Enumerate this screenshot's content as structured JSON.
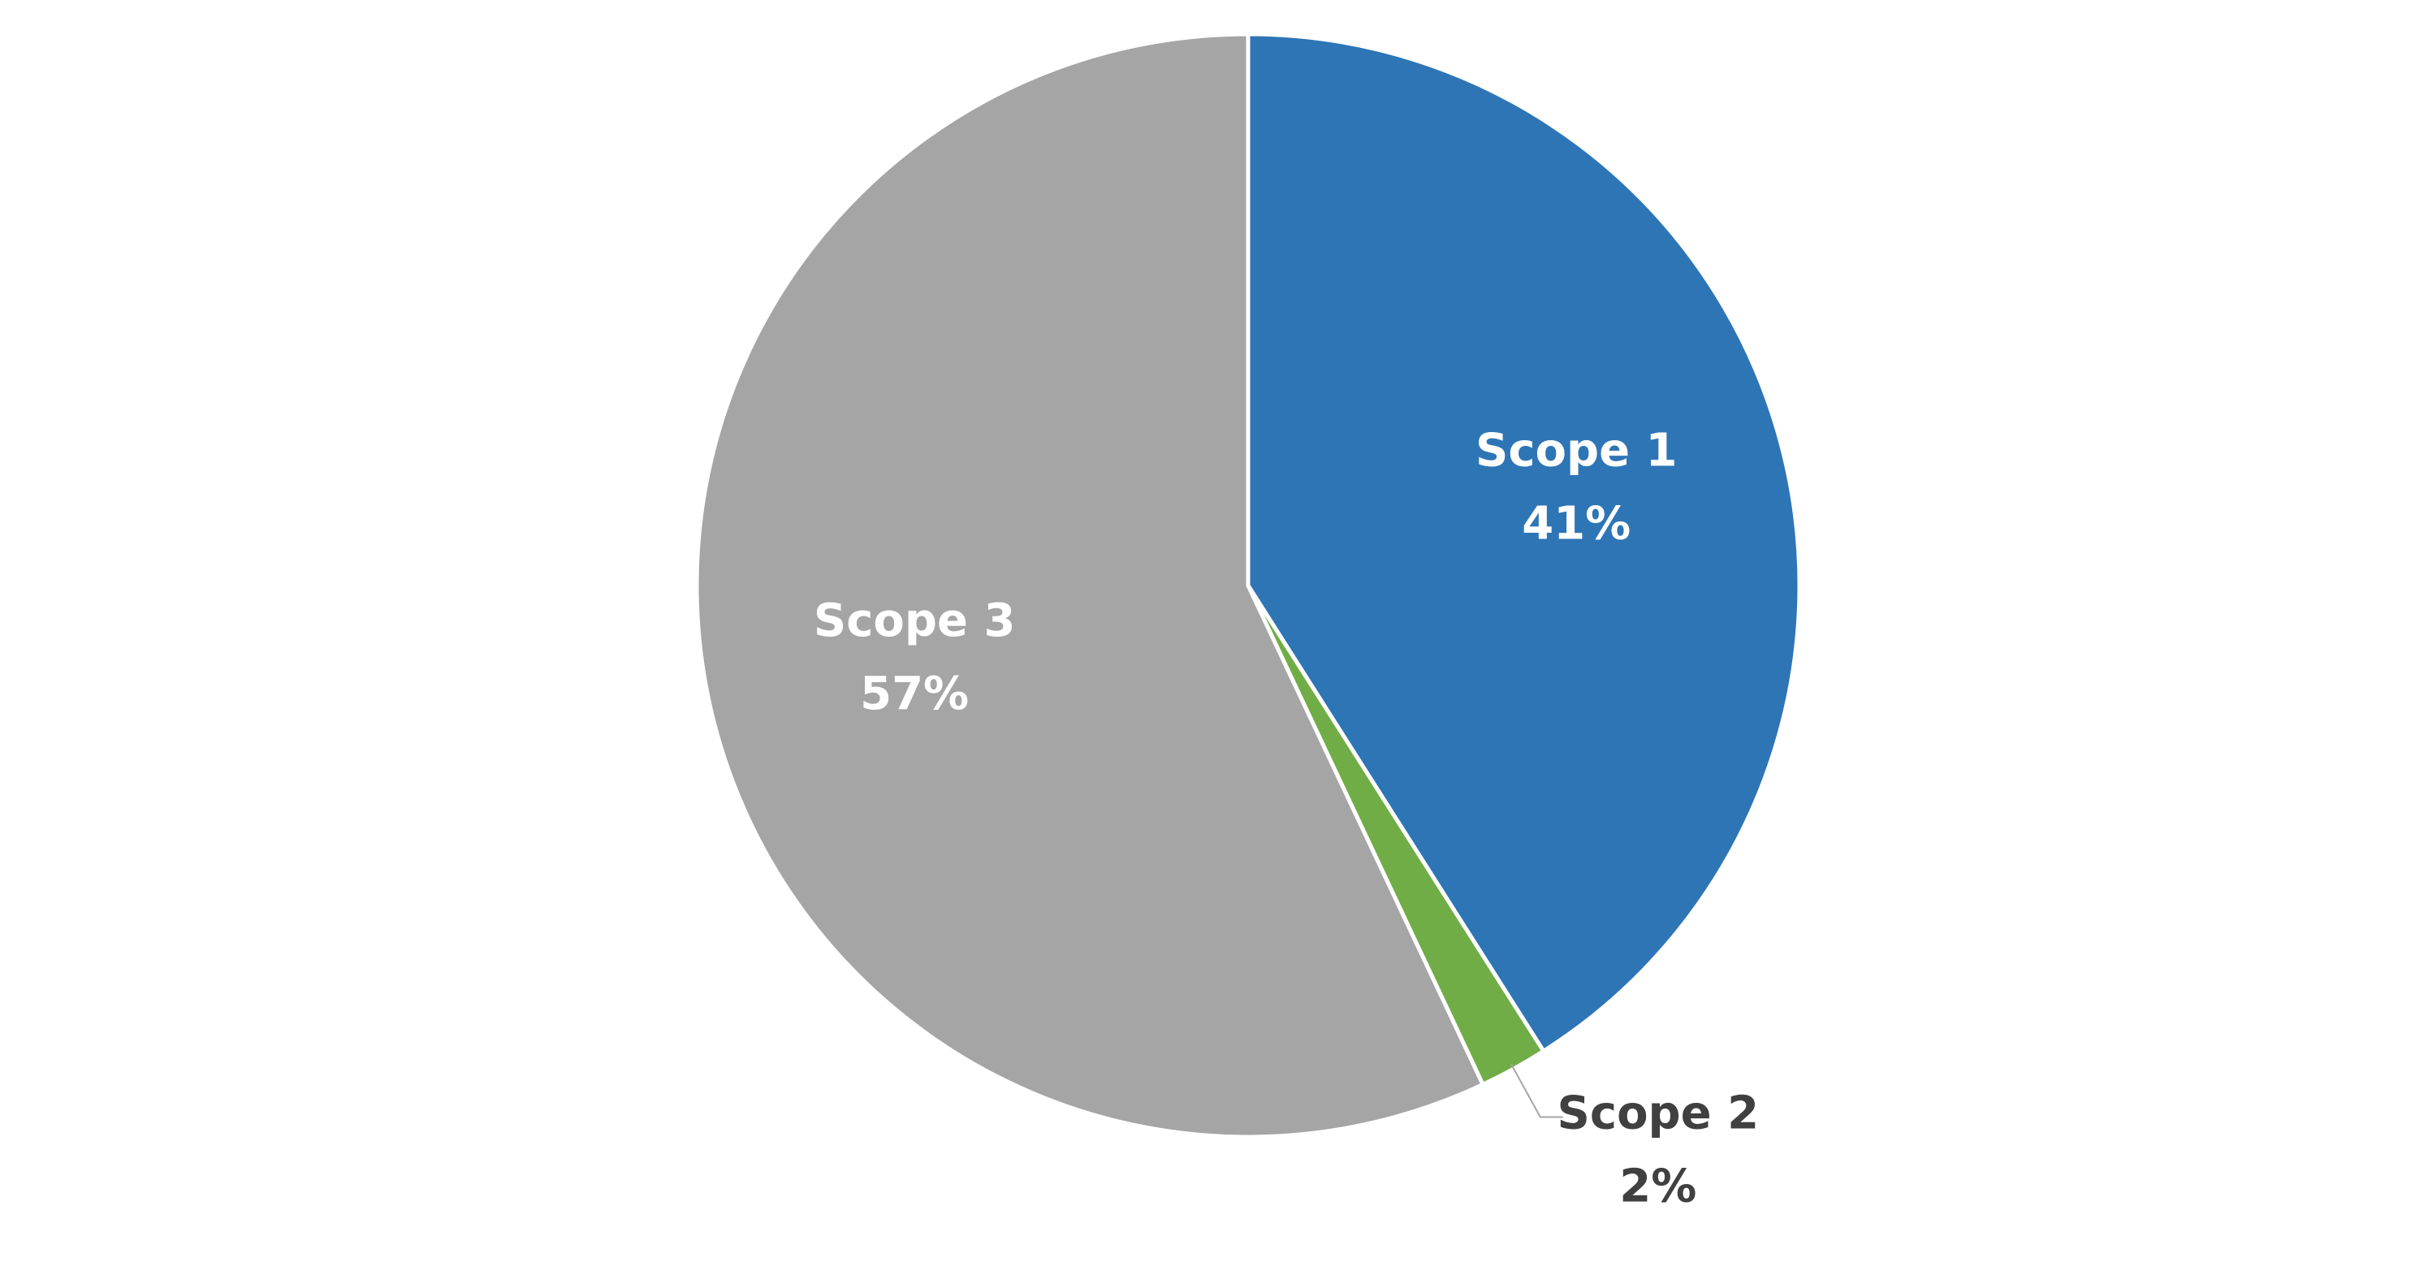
{
  "chart_data": {
    "type": "pie",
    "categories": [
      "Scope 1",
      "Scope 2",
      "Scope 3"
    ],
    "values": [
      41,
      2,
      57
    ],
    "value_labels": [
      "41%",
      "2%",
      "57%"
    ],
    "colors": [
      "#2e75b6",
      "#70ad47",
      "#a5a5a5"
    ]
  }
}
